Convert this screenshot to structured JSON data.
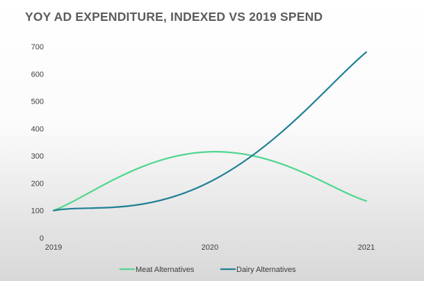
{
  "chart_data": {
    "type": "line",
    "title": "YOY AD EXPENDITURE, INDEXED VS 2019 SPEND",
    "xlabel": "",
    "ylabel": "",
    "x": [
      "2019",
      "2020",
      "2021"
    ],
    "ylim": [
      0,
      700
    ],
    "yticks": [
      "0",
      "100",
      "200",
      "300",
      "400",
      "500",
      "600",
      "700"
    ],
    "grid": false,
    "smooth": true,
    "legend_position": "bottom",
    "series": [
      {
        "name": "Meat Alternatives",
        "color": "#4fd68f",
        "values": [
          100,
          315,
          135
        ]
      },
      {
        "name": "Dairy Alternatives",
        "color": "#1f7f95",
        "values": [
          100,
          205,
          680
        ]
      }
    ]
  }
}
